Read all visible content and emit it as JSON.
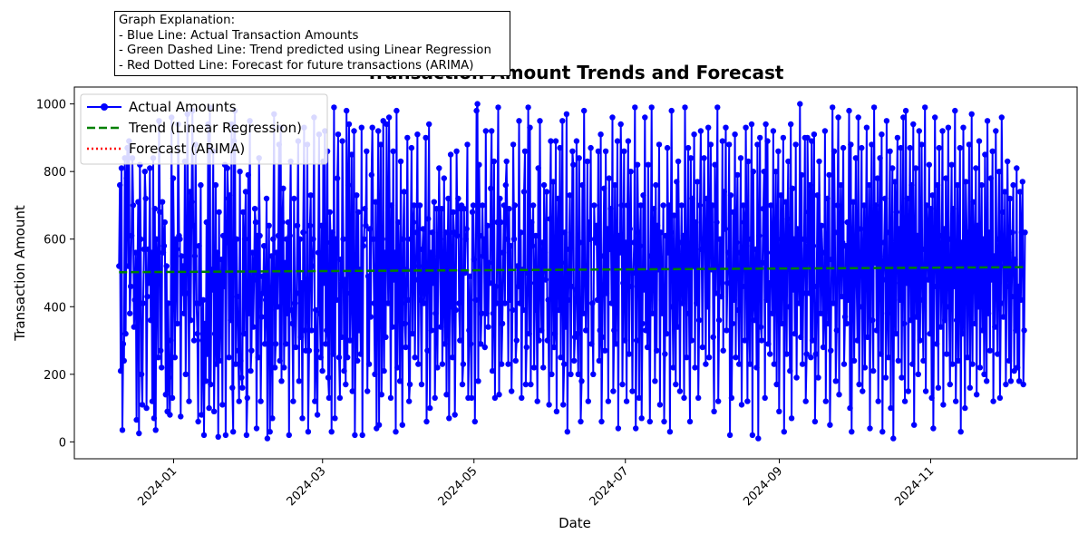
{
  "chart_data": {
    "type": "line",
    "title": "Transaction Amount Trends and Forecast",
    "xlabel": "Date",
    "ylabel": "Transaction Amount",
    "x_range": [
      "2023-11-22",
      "2024-12-30"
    ],
    "x_start": "2023-12-10",
    "x_end": "2024-12-09",
    "xticks": [
      "2024-01",
      "2024-03",
      "2024-05",
      "2024-07",
      "2024-09",
      "2024-11"
    ],
    "xtick_dates": [
      "2024-01-01",
      "2024-03-01",
      "2024-05-01",
      "2024-07-01",
      "2024-09-01",
      "2024-11-01"
    ],
    "yticks": [
      0,
      200,
      400,
      600,
      800,
      1000
    ],
    "ylim": [
      -50,
      1050
    ],
    "grid": false,
    "legend_position": "upper-left",
    "series": [
      {
        "name": "Actual Amounts",
        "color": "#0000ff",
        "style": "solid-markers",
        "values": [
          520,
          760,
          210,
          810,
          35,
          290,
          240,
          840,
          320,
          780,
          870,
          520,
          890,
          380,
          460,
          610,
          840,
          700,
          340,
          420,
          560,
          65,
          480,
          710,
          25,
          820,
          600,
          200,
          110,
          410,
          570,
          800,
          720,
          100,
          430,
          570,
          470,
          810,
          360,
          560,
          120,
          840,
          70,
          690,
          35,
          600,
          520,
          250,
          950,
          680,
          270,
          220,
          710,
          560,
          580,
          650,
          140,
          520,
          90,
          410,
          190,
          80,
          300,
          960,
          130,
          780,
          560,
          250,
          600,
          570,
          350,
          940,
          610,
          600,
          75,
          550,
          440,
          520,
          380,
          830,
          200,
          440,
          970,
          600,
          120,
          740,
          360,
          710,
          980,
          640,
          300,
          550,
          880,
          410,
          320,
          60,
          580,
          410,
          760,
          80,
          300,
          420,
          20,
          350,
          180,
          650,
          260,
          940,
          100,
          990,
          170,
          510,
          450,
          860,
          90,
          320,
          760,
          230,
          560,
          15,
          680,
          240,
          420,
          540,
          110,
          610,
          460,
          820,
          20,
          590,
          810,
          720,
          250,
          730,
          360,
          940,
          160,
          30,
          890,
          980,
          230,
          600,
          430,
          270,
          120,
          800,
          240,
          190,
          160,
          680,
          320,
          600,
          740,
          20,
          130,
          790,
          380,
          950,
          210,
          270,
          560,
          340,
          480,
          690,
          650,
          40,
          610,
          250,
          840,
          610,
          120,
          370,
          490,
          440,
          580,
          290,
          420,
          720,
          10,
          430,
          640,
          30,
          390,
          550,
          70,
          600,
          970,
          220,
          290,
          560,
          400,
          610,
          880,
          240,
          930,
          180,
          650,
          750,
          220,
          530,
          290,
          600,
          380,
          650,
          20,
          610,
          830,
          390,
          350,
          120,
          720,
          410,
          280,
          440,
          640,
          890,
          180,
          600,
          310,
          470,
          70,
          620,
          930,
          330,
          270,
          480,
          880,
          30,
          270,
          640,
          730,
          330,
          520,
          600,
          960,
          120,
          390,
          270,
          80,
          560,
          910,
          380,
          250,
          640,
          210,
          830,
          470,
          920,
          290,
          330,
          860,
          190,
          130,
          680,
          590,
          30,
          620,
          260,
          990,
          70,
          600,
          420,
          780,
          910,
          250,
          130,
          540,
          310,
          890,
          600,
          210,
          480,
          170,
          980,
          250,
          760,
          940,
          300,
          440,
          850,
          150,
          510,
          920,
          20,
          340,
          730,
          240,
          680,
          330,
          510,
          260,
          930,
          20,
          580,
          600,
          690,
          640,
          860,
          150,
          490,
          230,
          630,
          370,
          790,
          930,
          600,
          410,
          200,
          710,
          40,
          480,
          920,
          50,
          620,
          880,
          140,
          390,
          950,
          210,
          560,
          310,
          940,
          600,
          410,
          960,
          580,
          130,
          700,
          340,
          860,
          480,
          560,
          30,
          980,
          220,
          650,
          520,
          180,
          830,
          410,
          50,
          600,
          740,
          350,
          280,
          510,
          900,
          420,
          120,
          170,
          600,
          870,
          320,
          650,
          700,
          250,
          480,
          620,
          910,
          230,
          520,
          700,
          420,
          170,
          570,
          630,
          410,
          460,
          900,
          60,
          270,
          660,
          940,
          100,
          560,
          330,
          620,
          470,
          710,
          130,
          380,
          690,
          220,
          550,
          810,
          600,
          340,
          690,
          230,
          440,
          780,
          290,
          620,
          140,
          510,
          720,
          70,
          470,
          850,
          400,
          250,
          680,
          620,
          80,
          390,
          860,
          610,
          720,
          410,
          300,
          690,
          700,
          170,
          230,
          690,
          500,
          600,
          630,
          880,
          130,
          330,
          490,
          290,
          130,
          680,
          700,
          540,
          60,
          420,
          980,
          1000,
          180,
          820,
          610,
          290,
          380,
          700,
          550,
          600,
          280,
          920,
          380,
          640,
          340,
          530,
          470,
          750,
          920,
          210,
          380,
          830,
          130,
          460,
          410,
          650,
          990,
          140,
          720,
          650,
          230,
          350,
          560,
          700,
          410,
          760,
          830,
          600,
          230,
          690,
          420,
          580,
          150,
          390,
          880,
          600,
          700,
          240,
          300,
          520,
          460,
          950,
          410,
          620,
          130,
          510,
          390,
          740,
          860,
          170,
          280,
          500,
          990,
          320,
          930,
          170,
          650,
          580,
          700,
          220,
          470,
          610,
          390,
          120,
          810,
          300,
          950,
          480,
          330,
          590,
          220,
          760,
          560,
          480,
          740,
          300,
          420,
          110,
          660,
          890,
          200,
          540,
          770,
          280,
          320,
          890,
          90,
          600,
          720,
          390,
          870,
          250,
          530,
          950,
          110,
          230,
          620,
          340,
          970,
          30,
          420,
          570,
          730,
          200,
          460,
          860,
          820,
          240,
          310,
          450,
          890,
          320,
          200,
          840,
          590,
          60,
          180,
          760,
          380,
          980,
          520,
          330,
          490,
          830,
          120,
          650,
          600,
          870,
          290,
          410,
          200,
          700,
          600,
          590,
          640,
          420,
          860,
          240,
          330,
          910,
          60,
          310,
          550,
          750,
          270,
          860,
          440,
          630,
          120,
          780,
          570,
          690,
          410,
          960,
          150,
          330,
          760,
          290,
          520,
          890,
          40,
          610,
          560,
          940,
          700,
          170,
          470,
          860,
          300,
          590,
          120,
          700,
          890,
          260,
          630,
          800,
          460,
          150,
          500,
          590,
          990,
          40,
          300,
          820,
          620,
          130,
          580,
          700,
          70,
          350,
          730,
          450,
          960,
          330,
          500,
          280,
          820,
          420,
          60,
          550,
          990,
          380,
          580,
          690,
          180,
          760,
          270,
          640,
          510,
          880,
          110,
          620,
          420,
          380,
          700,
          60,
          260,
          610,
          320,
          870,
          560,
          700,
          30,
          620,
          980,
          400,
          220,
          670,
          480,
          170,
          770,
          340,
          830,
          590,
          150,
          530,
          700,
          410,
          610,
          130,
          990,
          580,
          250,
          590,
          870,
          380,
          60,
          840,
          300,
          720,
          520,
          910,
          220,
          650,
          410,
          770,
          130,
          360,
          700,
          920,
          570,
          280,
          600,
          840,
          600,
          230,
          720,
          400,
          930,
          250,
          620,
          880,
          510,
          700,
          310,
          90,
          820,
          440,
          650,
          990,
          120,
          360,
          600,
          520,
          430,
          890,
          270,
          740,
          630,
          930,
          330,
          470,
          560,
          880,
          20,
          730,
          130,
          350,
          680,
          420,
          910,
          250,
          590,
          790,
          390,
          230,
          560,
          840,
          110,
          460,
          700,
          650,
          300,
          930,
          580,
          120,
          830,
          360,
          230,
          600,
          940,
          20,
          800,
          430,
          360,
          570,
          220,
          880,
          10,
          610,
          900,
          340,
          300,
          530,
          690,
          800,
          130,
          940,
          420,
          890,
          290,
          470,
          260,
          700,
          560,
          380,
          920,
          230,
          510,
          800,
          170,
          600,
          860,
          90,
          420,
          730,
          350,
          580,
          900,
          30,
          540,
          710,
          260,
          660,
          830,
          400,
          210,
          940,
          70,
          750,
          450,
          600,
          320,
          880,
          190,
          630,
          550,
          410,
          1000,
          310,
          790,
          230,
          440,
          600,
          900,
          120,
          260,
          900,
          680,
          440,
          760,
          250,
          890,
          300,
          580,
          910,
          60,
          260,
          460,
          730,
          190,
          830,
          600,
          380,
          640,
          560,
          280,
          380,
          920,
          120,
          470,
          720,
          350,
          790,
          50,
          270,
          540,
          990,
          410,
          860,
          620,
          180,
          330,
          700,
          960,
          140,
          600,
          760,
          430,
          590,
          870,
          230,
          370,
          580,
          350,
          650,
          420,
          980,
          100,
          880,
          30,
          560,
          710,
          240,
          500,
          840,
          470,
          300,
          960,
          170,
          400,
          630,
          870,
          150,
          490,
          700,
          220,
          560,
          930,
          310,
          480,
          760,
          40,
          620,
          880,
          360,
          210,
          990,
          530,
          700,
          330,
          780,
          120,
          600,
          840,
          260,
          910,
          30,
          480,
          590,
          720,
          190,
          950,
          380,
          250,
          620,
          860,
          100,
          530,
          810,
          10,
          470,
          770,
          320,
          680,
          900,
          240,
          630,
          420,
          870,
          190,
          520,
          960,
          350,
          120,
          980,
          470,
          720,
          150,
          600,
          870,
          360,
          760,
          230,
          940,
          50,
          570,
          810,
          370,
          610,
          200,
          920,
          300,
          520,
          880,
          420,
          240,
          570,
          990,
          150,
          700,
          600,
          480,
          820,
          320,
          690,
          130,
          730,
          40,
          460,
          960,
          580,
          290,
          760,
          160,
          870,
          610,
          340,
          520,
          920,
          110,
          630,
          360,
          780,
          260,
          500,
          930,
          400,
          170,
          600,
          820,
          230,
          690,
          460,
          980,
          120,
          360,
          760,
          240,
          540,
          870,
          30,
          590,
          320,
          930,
          420,
          100,
          770,
          620,
          250,
          510,
          880,
          160,
          440,
          970,
          230,
          710,
          580,
          350,
          810,
          140,
          640,
          400,
          890,
          220,
          500,
          760,
          330,
          600,
          200,
          850,
          440,
          180,
          950,
          380,
          620,
          270,
          780,
          480,
          860,
          120,
          550,
          340,
          920,
          470,
          260,
          600,
          800,
          130,
          410,
          960,
          680,
          370,
          520,
          740,
          170,
          460,
          830,
          560,
          240,
          720,
          180,
          430,
          620,
          760,
          210,
          540,
          330,
          810,
          220,
          460,
          180,
          740,
          420,
          620,
          770,
          170,
          330,
          620
        ]
      },
      {
        "name": "Trend (Linear Regression)",
        "color": "#008000",
        "style": "dashed",
        "values": [
          502,
          517
        ]
      },
      {
        "name": "Forecast (ARIMA)",
        "color": "#ff0000",
        "style": "dotted",
        "values": []
      }
    ]
  },
  "explanation": {
    "title": "Graph Explanation:",
    "lines": [
      "- Blue Line: Actual Transaction Amounts",
      "- Green Dashed Line: Trend predicted using Linear Regression",
      "- Red Dotted Line: Forecast for future transactions (ARIMA)"
    ]
  }
}
